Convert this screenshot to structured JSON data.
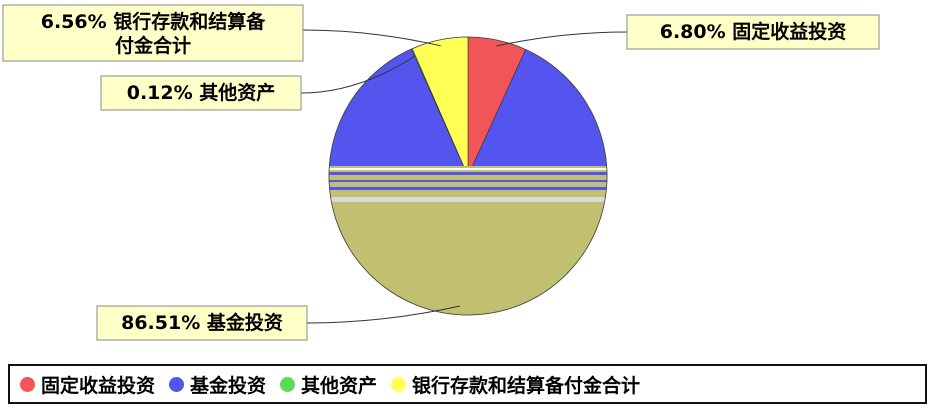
{
  "chart_data": {
    "type": "pie",
    "categories": [
      "固定收益投资",
      "基金投资",
      "其他资产",
      "银行存款和结算备付金合计"
    ],
    "values": [
      6.8,
      86.51,
      0.12,
      6.56
    ],
    "colors": [
      "#f05558",
      "#5454ee",
      "#55dd55",
      "#ffff55"
    ],
    "callout_labels": [
      [
        "6.80% 固定收益投资"
      ],
      [
        "86.51% 基金投资"
      ],
      [
        "0.12% 其他资产"
      ],
      [
        "6.56% 银行存款和结算备",
        "付金合计"
      ]
    ],
    "legend_position": "bottom"
  }
}
